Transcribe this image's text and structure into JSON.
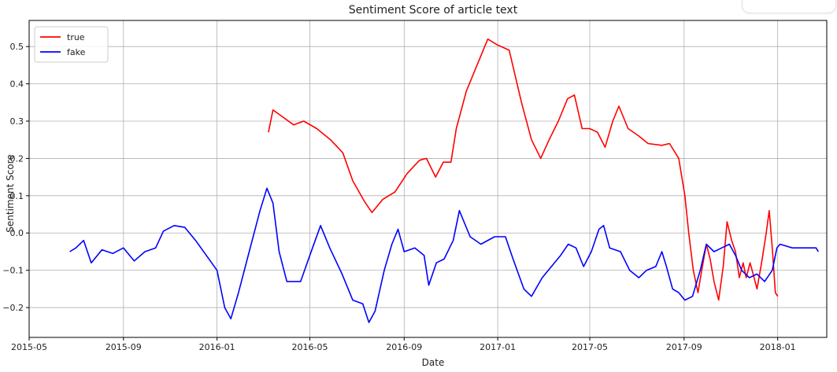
{
  "chart_data": {
    "type": "line",
    "title": "Sentiment Score of article text",
    "xlabel": "Date",
    "ylabel": "Sentiment Score",
    "x_type": "date",
    "xlim": [
      "2015-05-01",
      "2018-03-06"
    ],
    "ylim": [
      -0.28,
      0.57
    ],
    "x_ticks": [
      "2015-05",
      "2015-09",
      "2016-01",
      "2016-05",
      "2016-09",
      "2017-01",
      "2017-05",
      "2017-09",
      "2018-01"
    ],
    "y_ticks": [
      "−0.2",
      "−0.1",
      "0.0",
      "0.1",
      "0.2",
      "0.3",
      "0.4",
      "0.5"
    ],
    "y_tick_values": [
      -0.2,
      -0.1,
      0.0,
      0.1,
      0.2,
      0.3,
      0.4,
      0.5
    ],
    "grid": true,
    "legend_position": "top-left",
    "series": [
      {
        "name": "true",
        "color": "#ff0000",
        "points": [
          [
            "2016-03-08",
            0.27
          ],
          [
            "2016-03-14",
            0.33
          ],
          [
            "2016-03-24",
            0.315
          ],
          [
            "2016-04-10",
            0.29
          ],
          [
            "2016-04-23",
            0.3
          ],
          [
            "2016-05-10",
            0.28
          ],
          [
            "2016-05-28",
            0.25
          ],
          [
            "2016-06-13",
            0.215
          ],
          [
            "2016-06-26",
            0.14
          ],
          [
            "2016-07-11",
            0.085
          ],
          [
            "2016-07-21",
            0.055
          ],
          [
            "2016-08-04",
            0.09
          ],
          [
            "2016-08-20",
            0.11
          ],
          [
            "2016-09-05",
            0.16
          ],
          [
            "2016-09-21",
            0.195
          ],
          [
            "2016-09-30",
            0.2
          ],
          [
            "2016-10-12",
            0.15
          ],
          [
            "2016-10-22",
            0.19
          ],
          [
            "2016-11-01",
            0.19
          ],
          [
            "2016-11-08",
            0.28
          ],
          [
            "2016-11-21",
            0.38
          ],
          [
            "2016-12-05",
            0.45
          ],
          [
            "2016-12-19",
            0.52
          ],
          [
            "2016-12-31",
            0.505
          ],
          [
            "2017-01-16",
            0.49
          ],
          [
            "2017-02-01",
            0.35
          ],
          [
            "2017-02-14",
            0.25
          ],
          [
            "2017-02-26",
            0.2
          ],
          [
            "2017-03-09",
            0.25
          ],
          [
            "2017-03-21",
            0.3
          ],
          [
            "2017-04-02",
            0.36
          ],
          [
            "2017-04-11",
            0.37
          ],
          [
            "2017-04-21",
            0.28
          ],
          [
            "2017-05-01",
            0.28
          ],
          [
            "2017-05-11",
            0.27
          ],
          [
            "2017-05-21",
            0.23
          ],
          [
            "2017-05-31",
            0.3
          ],
          [
            "2017-06-08",
            0.34
          ],
          [
            "2017-06-20",
            0.28
          ],
          [
            "2017-07-04",
            0.26
          ],
          [
            "2017-07-16",
            0.24
          ],
          [
            "2017-08-03",
            0.235
          ],
          [
            "2017-08-13",
            0.24
          ],
          [
            "2017-08-25",
            0.2
          ],
          [
            "2017-09-02",
            0.1
          ],
          [
            "2017-09-07",
            0.0
          ],
          [
            "2017-09-13",
            -0.1
          ],
          [
            "2017-09-19",
            -0.16
          ],
          [
            "2017-09-24",
            -0.1
          ],
          [
            "2017-09-30",
            -0.03
          ],
          [
            "2017-10-05",
            -0.07
          ],
          [
            "2017-10-10",
            -0.13
          ],
          [
            "2017-10-16",
            -0.18
          ],
          [
            "2017-10-22",
            -0.09
          ],
          [
            "2017-10-27",
            0.03
          ],
          [
            "2017-11-02",
            -0.02
          ],
          [
            "2017-11-07",
            -0.05
          ],
          [
            "2017-11-12",
            -0.12
          ],
          [
            "2017-11-17",
            -0.08
          ],
          [
            "2017-11-21",
            -0.12
          ],
          [
            "2017-11-26",
            -0.08
          ],
          [
            "2017-11-30",
            -0.11
          ],
          [
            "2017-12-05",
            -0.15
          ],
          [
            "2017-12-11",
            -0.08
          ],
          [
            "2017-12-17",
            0.0
          ],
          [
            "2017-12-21",
            0.06
          ],
          [
            "2017-12-25",
            -0.04
          ],
          [
            "2017-12-29",
            -0.16
          ],
          [
            "2018-01-01",
            -0.17
          ]
        ]
      },
      {
        "name": "fake",
        "color": "#0000ff",
        "points": [
          [
            "2015-06-23",
            -0.05
          ],
          [
            "2015-07-01",
            -0.04
          ],
          [
            "2015-07-11",
            -0.02
          ],
          [
            "2015-07-21",
            -0.08
          ],
          [
            "2015-08-04",
            -0.045
          ],
          [
            "2015-08-18",
            -0.055
          ],
          [
            "2015-09-01",
            -0.04
          ],
          [
            "2015-09-15",
            -0.075
          ],
          [
            "2015-09-29",
            -0.05
          ],
          [
            "2015-10-13",
            -0.04
          ],
          [
            "2015-10-23",
            0.005
          ],
          [
            "2015-11-06",
            0.02
          ],
          [
            "2015-11-20",
            0.015
          ],
          [
            "2015-12-04",
            -0.02
          ],
          [
            "2015-12-18",
            -0.06
          ],
          [
            "2016-01-01",
            -0.1
          ],
          [
            "2016-01-11",
            -0.2
          ],
          [
            "2016-01-19",
            -0.23
          ],
          [
            "2016-01-29",
            -0.16
          ],
          [
            "2016-02-12",
            -0.05
          ],
          [
            "2016-02-26",
            0.06
          ],
          [
            "2016-03-06",
            0.12
          ],
          [
            "2016-03-14",
            0.08
          ],
          [
            "2016-03-22",
            -0.05
          ],
          [
            "2016-04-01",
            -0.13
          ],
          [
            "2016-04-19",
            -0.13
          ],
          [
            "2016-05-01",
            -0.06
          ],
          [
            "2016-05-15",
            0.02
          ],
          [
            "2016-05-27",
            -0.04
          ],
          [
            "2016-06-12",
            -0.11
          ],
          [
            "2016-06-26",
            -0.18
          ],
          [
            "2016-07-09",
            -0.19
          ],
          [
            "2016-07-17",
            -0.24
          ],
          [
            "2016-07-25",
            -0.21
          ],
          [
            "2016-08-06",
            -0.1
          ],
          [
            "2016-08-16",
            -0.03
          ],
          [
            "2016-08-24",
            0.01
          ],
          [
            "2016-09-01",
            -0.05
          ],
          [
            "2016-09-15",
            -0.04
          ],
          [
            "2016-09-27",
            -0.06
          ],
          [
            "2016-10-03",
            -0.14
          ],
          [
            "2016-10-13",
            -0.08
          ],
          [
            "2016-10-23",
            -0.07
          ],
          [
            "2016-11-04",
            -0.02
          ],
          [
            "2016-11-12",
            0.06
          ],
          [
            "2016-11-26",
            -0.01
          ],
          [
            "2016-12-10",
            -0.03
          ],
          [
            "2016-12-28",
            -0.01
          ],
          [
            "2017-01-11",
            -0.01
          ],
          [
            "2017-01-21",
            -0.07
          ],
          [
            "2017-02-04",
            -0.15
          ],
          [
            "2017-02-14",
            -0.17
          ],
          [
            "2017-02-28",
            -0.12
          ],
          [
            "2017-03-12",
            -0.09
          ],
          [
            "2017-03-24",
            -0.06
          ],
          [
            "2017-04-03",
            -0.03
          ],
          [
            "2017-04-13",
            -0.04
          ],
          [
            "2017-04-23",
            -0.09
          ],
          [
            "2017-05-03",
            -0.05
          ],
          [
            "2017-05-13",
            0.01
          ],
          [
            "2017-05-19",
            0.02
          ],
          [
            "2017-05-27",
            -0.04
          ],
          [
            "2017-06-10",
            -0.05
          ],
          [
            "2017-06-22",
            -0.1
          ],
          [
            "2017-07-04",
            -0.12
          ],
          [
            "2017-07-14",
            -0.1
          ],
          [
            "2017-07-26",
            -0.09
          ],
          [
            "2017-08-03",
            -0.05
          ],
          [
            "2017-08-09",
            -0.09
          ],
          [
            "2017-08-17",
            -0.15
          ],
          [
            "2017-08-25",
            -0.16
          ],
          [
            "2017-09-02",
            -0.18
          ],
          [
            "2017-09-12",
            -0.17
          ],
          [
            "2017-09-22",
            -0.1
          ],
          [
            "2017-09-30",
            -0.03
          ],
          [
            "2017-10-10",
            -0.05
          ],
          [
            "2017-10-20",
            -0.04
          ],
          [
            "2017-10-30",
            -0.03
          ],
          [
            "2017-11-07",
            -0.06
          ],
          [
            "2017-11-15",
            -0.1
          ],
          [
            "2017-11-25",
            -0.12
          ],
          [
            "2017-12-05",
            -0.11
          ],
          [
            "2017-12-15",
            -0.13
          ],
          [
            "2017-12-25",
            -0.1
          ],
          [
            "2017-12-31",
            -0.04
          ],
          [
            "2018-01-04",
            -0.03
          ],
          [
            "2018-01-20",
            -0.04
          ],
          [
            "2018-02-10",
            -0.04
          ],
          [
            "2018-02-20",
            -0.04
          ],
          [
            "2018-02-23",
            -0.05
          ]
        ]
      }
    ]
  }
}
